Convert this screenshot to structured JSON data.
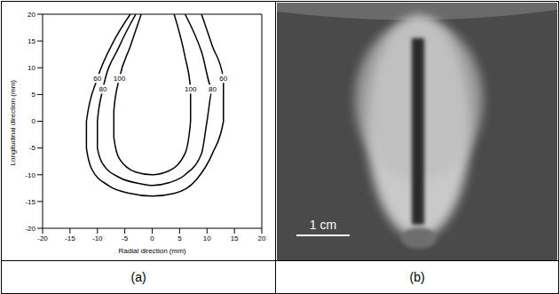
{
  "chart_data": {
    "type": "line",
    "x_label": "Radial direction (mm)",
    "y_label": "Longitudinal direction (mm)",
    "xlim": [
      -20,
      20
    ],
    "ylim": [
      -20,
      20
    ],
    "xticks": [
      -20,
      -15,
      -10,
      -5,
      0,
      5,
      10,
      15,
      20
    ],
    "yticks": [
      -20,
      -15,
      -10,
      -5,
      0,
      5,
      10,
      15,
      20
    ],
    "grid": false,
    "series": [
      {
        "name": "60",
        "color": "#000000",
        "x": [
          -4,
          -7,
          -10,
          -12,
          -12,
          -11,
          -8,
          -4,
          0,
          4,
          8,
          11,
          13,
          13,
          11,
          9
        ],
        "values": [
          20,
          15,
          8,
          0,
          -5,
          -9,
          -12,
          -13.5,
          -14,
          -13.5,
          -11,
          -6,
          0,
          8,
          14,
          20
        ]
      },
      {
        "name": "80",
        "color": "#000000",
        "x": [
          -3,
          -6,
          -9,
          -10,
          -10,
          -9,
          -6,
          -2,
          0,
          3,
          6,
          9,
          10,
          11,
          9,
          6
        ],
        "values": [
          20,
          14,
          6,
          0,
          -5,
          -8,
          -10.5,
          -11.7,
          -12,
          -11.5,
          -10,
          -6,
          0,
          6,
          13,
          20
        ]
      },
      {
        "name": "100",
        "color": "#000000",
        "x": [
          -2,
          -4,
          -6,
          -7,
          -7,
          -6,
          -3,
          0,
          3,
          6,
          7,
          7,
          6,
          4
        ],
        "values": [
          20,
          14,
          8,
          2,
          -3,
          -7,
          -9.5,
          -10,
          -9.3,
          -6,
          0,
          6,
          12,
          20
        ]
      }
    ]
  },
  "captions": [
    "(a)",
    "(b)"
  ],
  "scale_bar": "1 cm"
}
